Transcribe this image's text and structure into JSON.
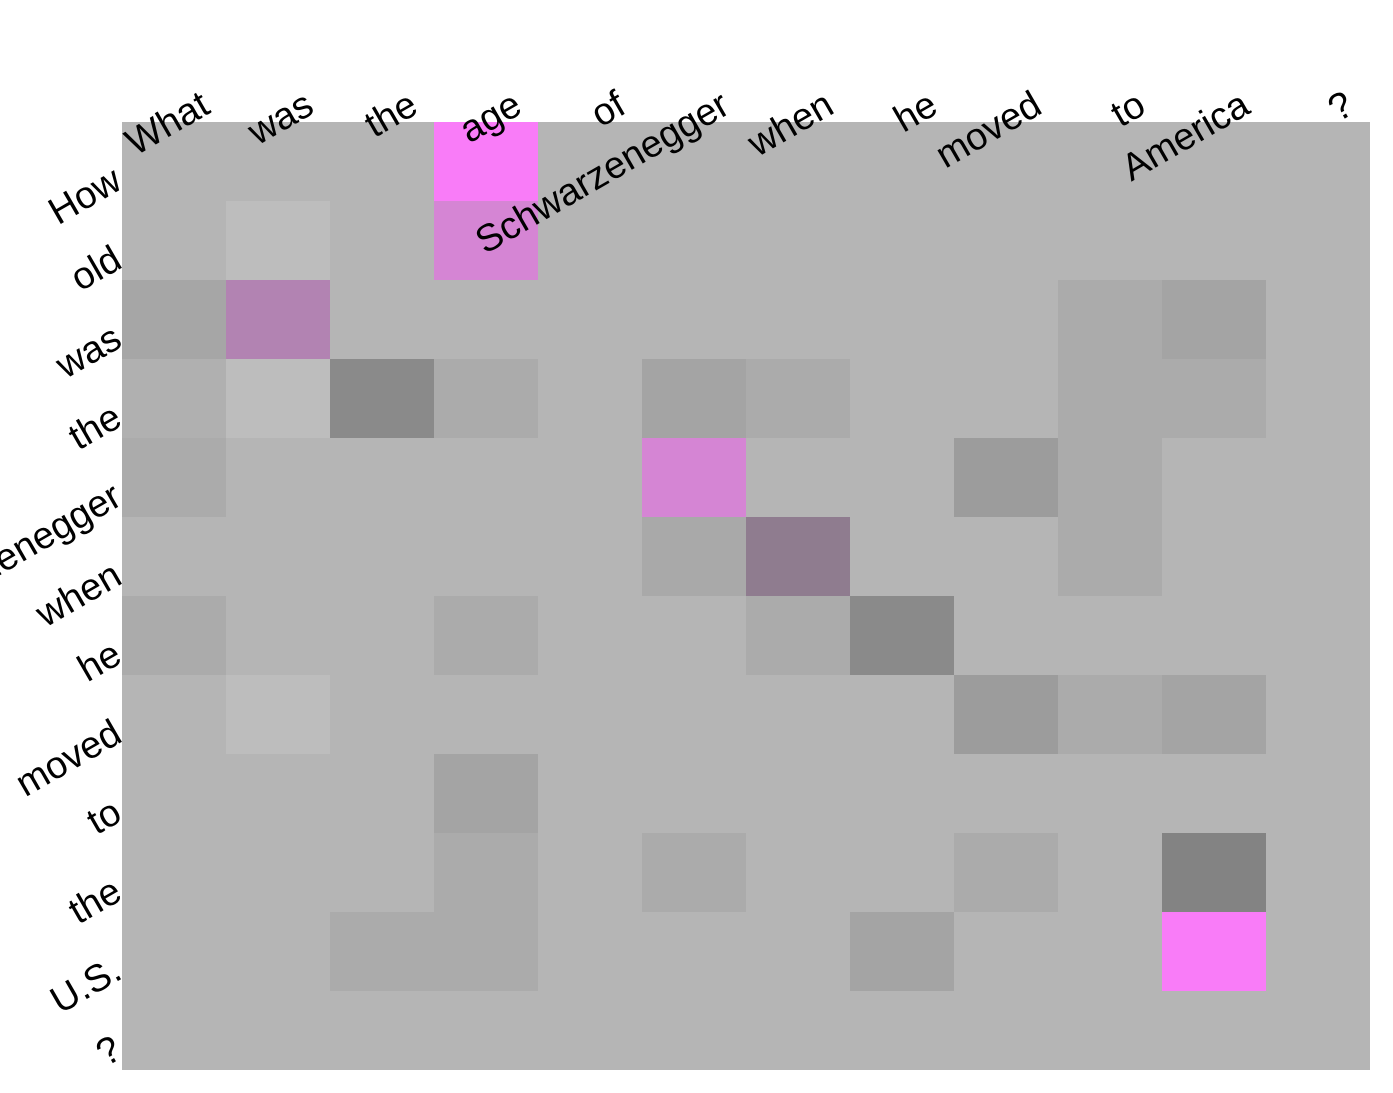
{
  "chart_data": {
    "type": "heatmap",
    "x_tokens": [
      "What",
      "was",
      "the",
      "age",
      "of",
      "Schwarzenegger",
      "when",
      "he",
      "moved",
      "to",
      "America",
      "?"
    ],
    "y_tokens": [
      "How",
      "old",
      "was",
      "the",
      "Schwarzenegger",
      "when",
      "he",
      "moved",
      "to",
      "the",
      "U.S.",
      "?"
    ],
    "background_color": "#b5b5b5",
    "cells": [
      {
        "row": 0,
        "col": 3,
        "color": "#f97cf8"
      },
      {
        "row": 1,
        "col": 1,
        "color": "#bdbdbd"
      },
      {
        "row": 1,
        "col": 3,
        "color": "#d585d4"
      },
      {
        "row": 2,
        "col": 0,
        "color": "#a6a6a6"
      },
      {
        "row": 2,
        "col": 1,
        "color": "#b283b2"
      },
      {
        "row": 2,
        "col": 9,
        "color": "#ababab"
      },
      {
        "row": 2,
        "col": 10,
        "color": "#a4a4a4"
      },
      {
        "row": 3,
        "col": 0,
        "color": "#b0b0b0"
      },
      {
        "row": 3,
        "col": 1,
        "color": "#bdbdbd"
      },
      {
        "row": 3,
        "col": 2,
        "color": "#8a8a8a"
      },
      {
        "row": 3,
        "col": 3,
        "color": "#ababab"
      },
      {
        "row": 3,
        "col": 5,
        "color": "#a4a4a4"
      },
      {
        "row": 3,
        "col": 6,
        "color": "#ababab"
      },
      {
        "row": 3,
        "col": 9,
        "color": "#ababab"
      },
      {
        "row": 3,
        "col": 10,
        "color": "#ababab"
      },
      {
        "row": 4,
        "col": 0,
        "color": "#ababab"
      },
      {
        "row": 4,
        "col": 5,
        "color": "#d585d4"
      },
      {
        "row": 4,
        "col": 8,
        "color": "#9c9c9c"
      },
      {
        "row": 4,
        "col": 9,
        "color": "#ababab"
      },
      {
        "row": 5,
        "col": 5,
        "color": "#a9a9a9"
      },
      {
        "row": 5,
        "col": 6,
        "color": "#8f7c8f"
      },
      {
        "row": 5,
        "col": 9,
        "color": "#ababab"
      },
      {
        "row": 6,
        "col": 0,
        "color": "#ababab"
      },
      {
        "row": 6,
        "col": 3,
        "color": "#ababab"
      },
      {
        "row": 6,
        "col": 6,
        "color": "#ababab"
      },
      {
        "row": 6,
        "col": 7,
        "color": "#8a8a8a"
      },
      {
        "row": 7,
        "col": 1,
        "color": "#bdbdbd"
      },
      {
        "row": 7,
        "col": 8,
        "color": "#9c9c9c"
      },
      {
        "row": 7,
        "col": 9,
        "color": "#ababab"
      },
      {
        "row": 7,
        "col": 10,
        "color": "#a4a4a4"
      },
      {
        "row": 8,
        "col": 3,
        "color": "#a4a4a4"
      },
      {
        "row": 9,
        "col": 3,
        "color": "#ababab"
      },
      {
        "row": 9,
        "col": 5,
        "color": "#ababab"
      },
      {
        "row": 9,
        "col": 8,
        "color": "#ababab"
      },
      {
        "row": 9,
        "col": 10,
        "color": "#838383"
      },
      {
        "row": 10,
        "col": 2,
        "color": "#ababab"
      },
      {
        "row": 10,
        "col": 3,
        "color": "#ababab"
      },
      {
        "row": 10,
        "col": 7,
        "color": "#a4a4a4"
      },
      {
        "row": 10,
        "col": 10,
        "color": "#f97cf8"
      }
    ],
    "title": "",
    "xlabel": "",
    "ylabel": "",
    "grid": false,
    "legend": false
  }
}
